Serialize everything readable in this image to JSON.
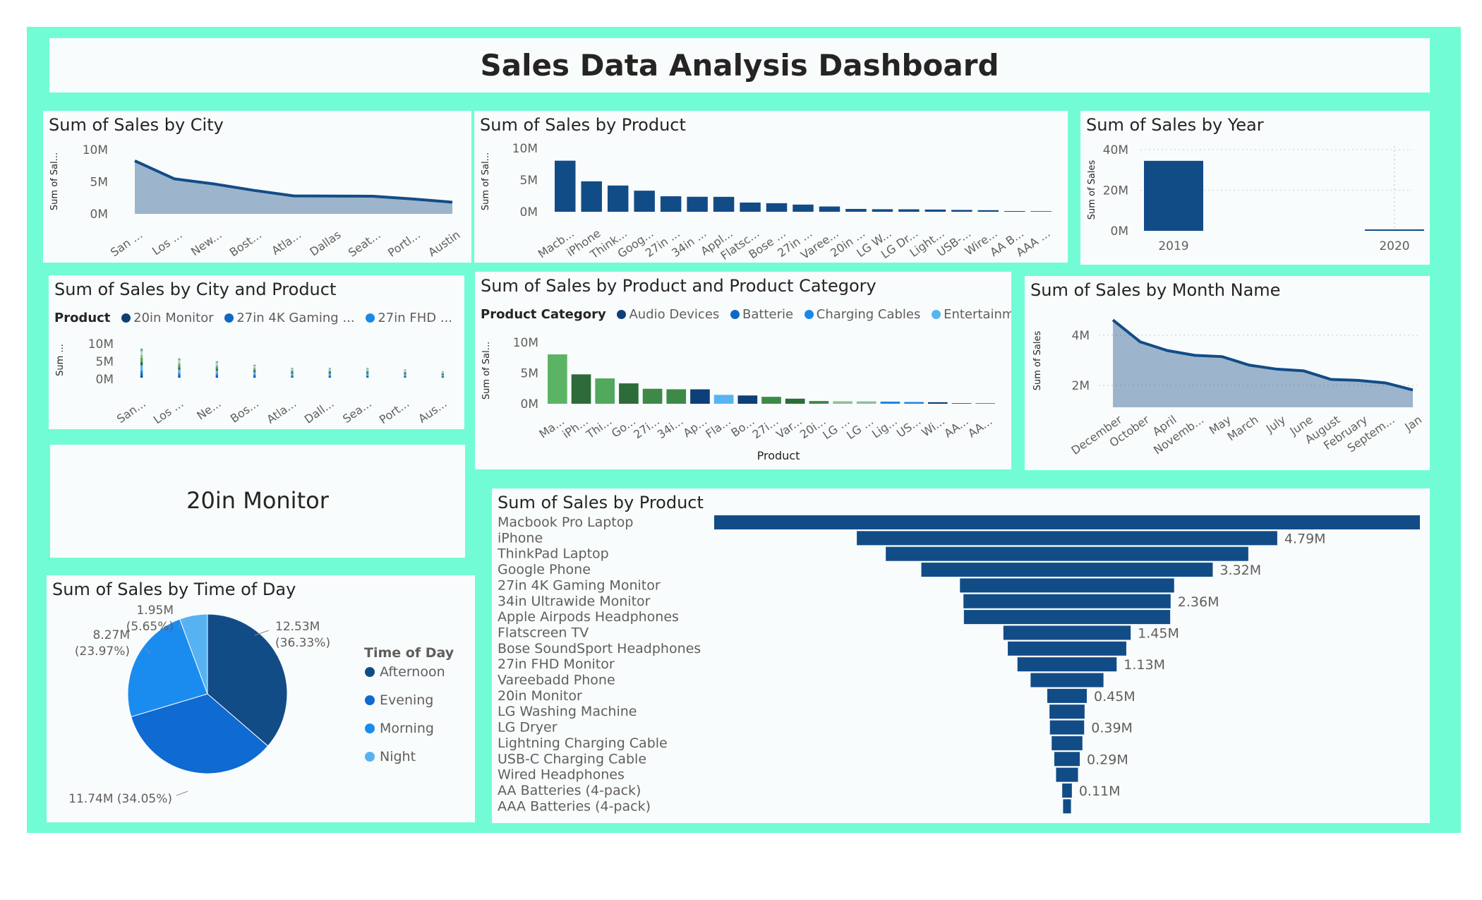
{
  "title": "Sales Data Analysis Dashboard",
  "city_chart": {
    "title": "Sum of Sales by City",
    "ylabel": "Sum of Sal...",
    "yticks": [
      "10M",
      "5M",
      "0M"
    ],
    "type": "area",
    "color": "#124c87",
    "categories": [
      "San ...",
      "Los ...",
      "New...",
      "Bost...",
      "Atla...",
      "Dallas",
      "Seat...",
      "Portl...",
      "Austin"
    ],
    "values": [
      8.26,
      5.45,
      4.66,
      3.66,
      2.8,
      2.77,
      2.75,
      2.32,
      1.82
    ],
    "ymax": 10
  },
  "product_chart": {
    "title": "Sum of Sales by Product",
    "ylabel": "Sum of Sal...",
    "yticks": [
      "10M",
      "5M",
      "0M"
    ],
    "type": "bar",
    "color": "#124c87",
    "categories": [
      "Macb...",
      "iPhone",
      "Think...",
      "Goog...",
      "27in ...",
      "34in ...",
      "Appl...",
      "Flatsc...",
      "Bose ...",
      "27in ...",
      "Varee...",
      "20in ...",
      "LG W...",
      "LG Dr...",
      "Light...",
      "USB-...",
      "Wire...",
      "AA B...",
      "AAA ..."
    ],
    "values": [
      8.04,
      4.79,
      4.13,
      3.32,
      2.44,
      2.36,
      2.35,
      1.45,
      1.35,
      1.13,
      0.83,
      0.45,
      0.4,
      0.39,
      0.35,
      0.29,
      0.25,
      0.11,
      0.09
    ],
    "ymax": 10
  },
  "year_chart": {
    "title": "Sum of Sales by Year",
    "ylabel": "Sum of Sales",
    "yticks": [
      "40M",
      "20M",
      "0M"
    ],
    "type": "bar",
    "color": "#124c87",
    "categories": [
      "2019",
      "2020"
    ],
    "values": [
      34.49,
      0.01
    ],
    "ymax": 40
  },
  "city_product_chart": {
    "title": "Sum of Sales by City and Product",
    "legend_title": "Product",
    "legend": [
      {
        "name": "20in Monitor",
        "color": "#0e3f78"
      },
      {
        "name": "27in 4K Gaming ...",
        "color": "#0f68c4"
      },
      {
        "name": "27in FHD ...",
        "color": "#1a88e8"
      }
    ],
    "ylabel": "Sum ...",
    "yticks": [
      "10M",
      "5M",
      "0M"
    ],
    "type": "bar",
    "categories": [
      "San...",
      "Los ...",
      "Ne...",
      "Bos...",
      "Atla...",
      "Dall...",
      "Sea...",
      "Port...",
      "Aus..."
    ],
    "values": [
      8.26,
      5.45,
      4.66,
      3.66,
      2.8,
      2.77,
      2.75,
      2.32,
      1.82
    ],
    "stack_colors": [
      "#0e3f78",
      "#0f68c4",
      "#1a88e8",
      "#58b4f0",
      "#2d6c3a",
      "#52a85c",
      "#8fbf94",
      "#c3d9c6",
      "#7ea5ad"
    ],
    "ymax": 10
  },
  "product_category_chart": {
    "title": "Sum of Sales by Product and Product Category",
    "legend_title": "Product Category",
    "legend": [
      {
        "name": "Audio Devices",
        "color": "#0e3f78"
      },
      {
        "name": "Batterie",
        "color": "#0f68c4"
      },
      {
        "name": "Charging Cables",
        "color": "#1a88e8"
      },
      {
        "name": "Entertainm...",
        "color": "#58b4f0"
      }
    ],
    "ylabel": "Sum of Sal...",
    "xlabel": "Product",
    "yticks": [
      "10M",
      "5M",
      "0M"
    ],
    "type": "bar",
    "categories": [
      "Ma...",
      "iPh...",
      "Thi...",
      "Go...",
      "27i...",
      "34i...",
      "Ap...",
      "Fla...",
      "Bo...",
      "27i...",
      "Var...",
      "20i...",
      "LG ...",
      "LG ...",
      "Lig...",
      "US...",
      "Wi...",
      "AA...",
      "AA..."
    ],
    "values": [
      8.04,
      4.79,
      4.13,
      3.32,
      2.44,
      2.36,
      2.35,
      1.45,
      1.35,
      1.13,
      0.83,
      0.45,
      0.4,
      0.39,
      0.35,
      0.29,
      0.25,
      0.11,
      0.09
    ],
    "bar_colors": [
      "#5bb463",
      "#2d6c3a",
      "#52a85c",
      "#2d6c3a",
      "#3d8a48",
      "#3d8a48",
      "#0e3f78",
      "#58b4f0",
      "#0e3f78",
      "#3d8a48",
      "#2d6c3a",
      "#3d8a48",
      "#8fbf94",
      "#8fbf94",
      "#1a88e8",
      "#1a88e8",
      "#0e3f78",
      "#0f68c4",
      "#0f68c4"
    ],
    "ymax": 10
  },
  "month_chart": {
    "title": "Sum of Sales by Month Name",
    "ylabel": "Sum of Sales",
    "yticks": [
      "4M",
      "2M"
    ],
    "type": "area",
    "color": "#124c87",
    "categories": [
      "December",
      "October",
      "April",
      "Novemb...",
      "May",
      "March",
      "July",
      "June",
      "August",
      "February",
      "Septem...",
      "Jan"
    ],
    "values": [
      4.61,
      3.74,
      3.39,
      3.2,
      3.15,
      2.81,
      2.65,
      2.58,
      2.24,
      2.2,
      2.1,
      1.82
    ],
    "ymin": 1,
    "ymax": 5
  },
  "card": {
    "value": "20in Monitor"
  },
  "time_chart": {
    "title": "Sum of Sales by Time of Day",
    "type": "pie",
    "legend_title": "Time of Day",
    "slices": [
      {
        "name": "Afternoon",
        "value": 12.53,
        "label": "12.53M",
        "pct": "(36.33%)",
        "color": "#124c87"
      },
      {
        "name": "Evening",
        "value": 11.74,
        "label": "11.74M (34.05%)",
        "pct": "",
        "color": "#0f6ad2"
      },
      {
        "name": "Morning",
        "value": 8.27,
        "label": "8.27M",
        "pct": "(23.97%)",
        "color": "#1a8cf0"
      },
      {
        "name": "Night",
        "value": 1.95,
        "label": "1.95M",
        "pct": "(5.65%)",
        "color": "#57b2f2"
      }
    ]
  },
  "funnel_chart": {
    "title": "Sum of Sales by Product",
    "type": "bar",
    "color": "#124c87",
    "categories": [
      "Macbook Pro Laptop",
      "iPhone",
      "ThinkPad Laptop",
      "Google Phone",
      "27in 4K Gaming Monitor",
      "34in Ultrawide Monitor",
      "Apple Airpods Headphones",
      "Flatscreen TV",
      "Bose SoundSport Headphones",
      "27in FHD Monitor",
      "Vareebadd Phone",
      "20in Monitor",
      "LG Washing Machine",
      "LG Dryer",
      "Lightning Charging Cable",
      "USB-C Charging Cable",
      "Wired Headphones",
      "AA Batteries (4-pack)",
      "AAA Batteries (4-pack)"
    ],
    "values": [
      8.04,
      4.79,
      4.13,
      3.32,
      2.44,
      2.36,
      2.35,
      1.45,
      1.35,
      1.13,
      0.83,
      0.45,
      0.4,
      0.39,
      0.35,
      0.29,
      0.25,
      0.11,
      0.09
    ],
    "labels": [
      "",
      "4.79M",
      "",
      "3.32M",
      "",
      "2.36M",
      "",
      "1.45M",
      "",
      "1.13M",
      "",
      "0.45M",
      "",
      "0.39M",
      "",
      "0.29M",
      "",
      "0.11M",
      ""
    ]
  }
}
